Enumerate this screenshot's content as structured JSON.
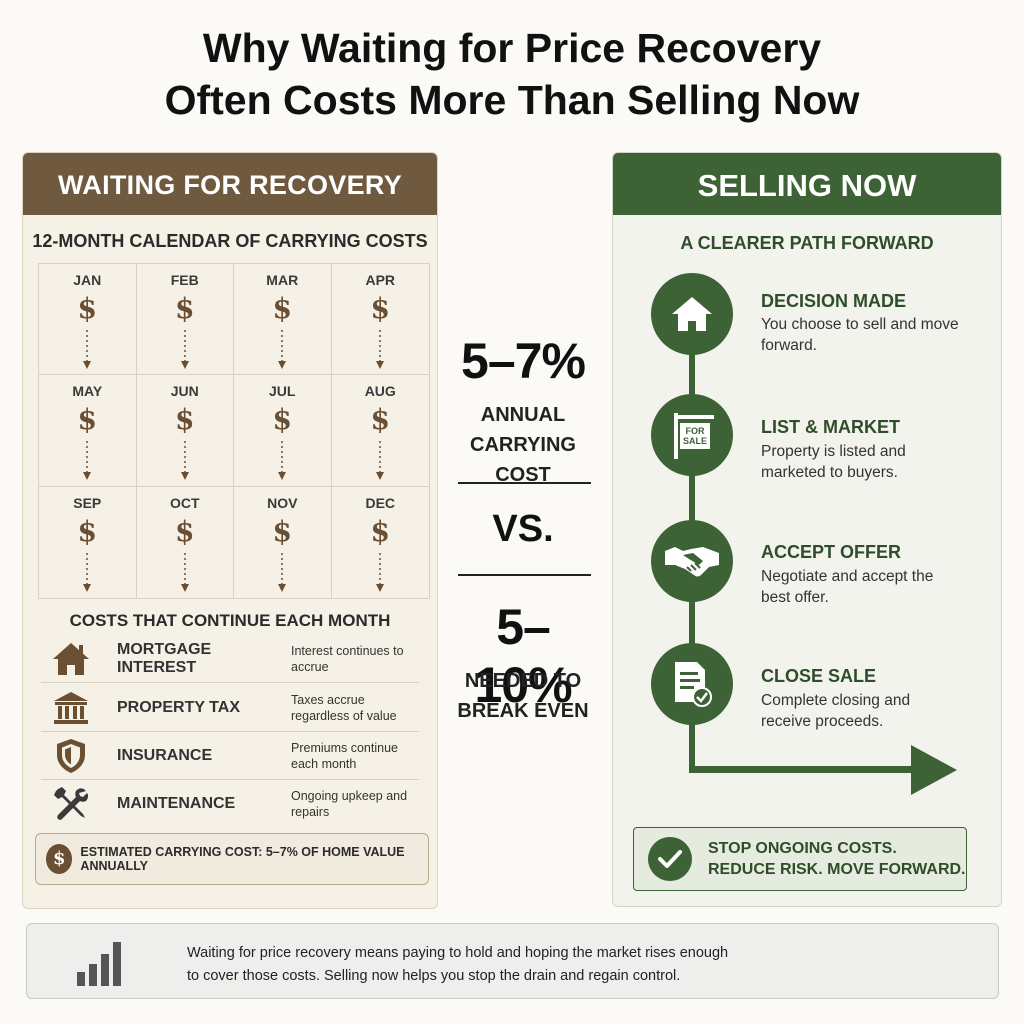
{
  "title": {
    "line1": "Why Waiting for Price Recovery",
    "line2": "Often Costs More Than Selling Now"
  },
  "left": {
    "header": "WAITING FOR RECOVERY",
    "calendar_title": "12-MONTH CALENDAR OF CARRYING COSTS",
    "months": [
      "JAN",
      "FEB",
      "MAR",
      "APR",
      "MAY",
      "JUN",
      "JUL",
      "AUG",
      "SEP",
      "OCT",
      "NOV",
      "DEC"
    ],
    "dollar_symbol": "$",
    "costs_title": "COSTS THAT CONTINUE EACH MONTH",
    "costs": [
      {
        "label": "MORTGAGE INTEREST",
        "desc": "Interest continues to accrue",
        "icon": "house-icon"
      },
      {
        "label": "PROPERTY TAX",
        "desc": "Taxes accrue regardless of value",
        "icon": "building-icon"
      },
      {
        "label": "INSURANCE",
        "desc": "Premiums continue each month",
        "icon": "shield-icon"
      },
      {
        "label": "MAINTENANCE",
        "desc": "Ongoing upkeep and repairs",
        "icon": "tools-icon"
      }
    ],
    "estimate": "ESTIMATED CARRYING COST: 5–7% OF HOME VALUE ANNUALLY"
  },
  "middle": {
    "stat1": "5–7%",
    "stat1_label_line1": "ANNUAL",
    "stat1_label_line2": "CARRYING COST",
    "vs": "VS.",
    "stat2": "5–10%",
    "stat2_label_line1": "NEEDED TO",
    "stat2_label_line2": "BREAK EVEN"
  },
  "right": {
    "header": "SELLING NOW",
    "path_title": "A CLEARER PATH FORWARD",
    "steps": [
      {
        "title": "DECISION MADE",
        "desc": "You choose to sell and move forward.",
        "icon": "house-icon"
      },
      {
        "title": "LIST & MARKET",
        "desc": "Property is listed and marketed to buyers.",
        "icon": "for-sale-sign-icon"
      },
      {
        "title": "ACCEPT OFFER",
        "desc": "Negotiate and accept the best offer.",
        "icon": "handshake-icon"
      },
      {
        "title": "CLOSE SALE",
        "desc": "Complete closing and receive proceeds.",
        "icon": "document-check-icon"
      }
    ],
    "for_sale_text_1": "FOR",
    "for_sale_text_2": "SALE",
    "stop_line1": "STOP ONGOING COSTS.",
    "stop_line2": "REDUCE RISK. MOVE FORWARD."
  },
  "bottom": {
    "icon": "bar-chart-icon",
    "line1": "Waiting for price recovery means paying to hold and hoping the market rises enough",
    "line2": "to cover those costs. Selling now helps you stop the drain and regain control."
  },
  "colors": {
    "brown": "#6f5a40",
    "green": "#3d6236",
    "left_bg": "#f6f1e6",
    "right_bg": "#f1f3ec"
  }
}
